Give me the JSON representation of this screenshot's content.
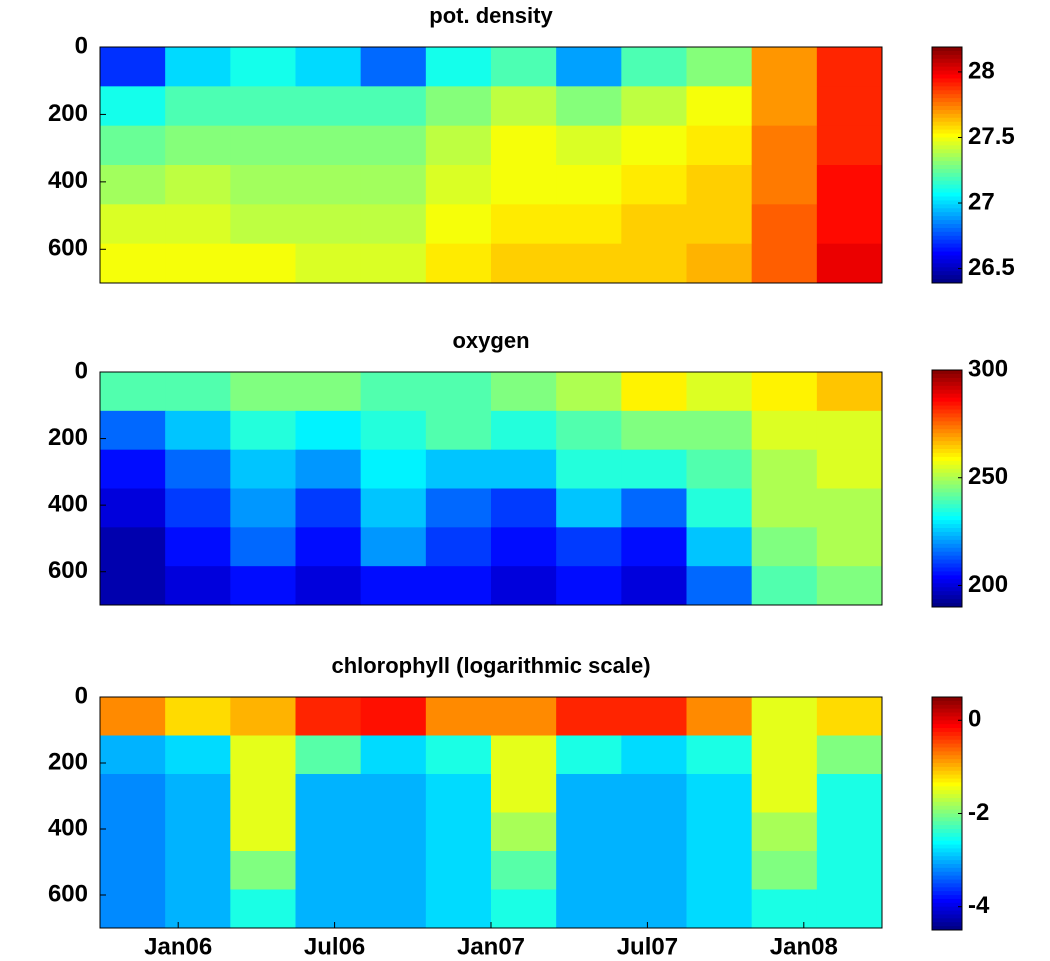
{
  "chart_data": [
    {
      "type": "contour",
      "title": "pot. density",
      "ylim": [
        0,
        700
      ],
      "yticks": [
        0,
        200,
        400,
        600
      ],
      "clim": [
        26.39,
        28.19
      ],
      "cticks": [
        26.5,
        27,
        27.5,
        28
      ],
      "z": [
        [
          26.7,
          27.0,
          27.1,
          27.0,
          26.8,
          27.1,
          27.2,
          26.9,
          27.2,
          27.3,
          27.7,
          27.9
        ],
        [
          27.1,
          27.2,
          27.2,
          27.2,
          27.2,
          27.3,
          27.4,
          27.3,
          27.4,
          27.5,
          27.7,
          27.9
        ],
        [
          27.25,
          27.3,
          27.3,
          27.3,
          27.3,
          27.4,
          27.5,
          27.45,
          27.5,
          27.55,
          27.75,
          27.9
        ],
        [
          27.35,
          27.4,
          27.35,
          27.35,
          27.35,
          27.45,
          27.5,
          27.5,
          27.55,
          27.6,
          27.75,
          27.95
        ],
        [
          27.45,
          27.45,
          27.4,
          27.4,
          27.4,
          27.5,
          27.55,
          27.55,
          27.6,
          27.6,
          27.8,
          27.95
        ],
        [
          27.5,
          27.5,
          27.5,
          27.45,
          27.45,
          27.55,
          27.6,
          27.6,
          27.6,
          27.65,
          27.8,
          28.0
        ]
      ]
    },
    {
      "type": "contour",
      "title": "oxygen",
      "ylim": [
        0,
        700
      ],
      "yticks": [
        0,
        200,
        400,
        600
      ],
      "clim": [
        190,
        300
      ],
      "cticks": [
        200,
        250,
        300
      ],
      "z": [
        [
          240,
          240,
          245,
          245,
          240,
          240,
          245,
          250,
          260,
          255,
          260,
          265
        ],
        [
          215,
          225,
          235,
          230,
          235,
          240,
          235,
          240,
          245,
          245,
          255,
          255
        ],
        [
          205,
          215,
          225,
          220,
          230,
          225,
          225,
          235,
          235,
          240,
          250,
          255
        ],
        [
          200,
          210,
          220,
          210,
          225,
          215,
          210,
          225,
          215,
          235,
          250,
          250
        ],
        [
          195,
          205,
          215,
          205,
          220,
          210,
          205,
          210,
          205,
          225,
          245,
          250
        ],
        [
          195,
          200,
          205,
          200,
          205,
          205,
          200,
          205,
          200,
          215,
          240,
          245
        ]
      ]
    },
    {
      "type": "contour",
      "title": "chlorophyll (logarithmic scale)",
      "ylim": [
        0,
        700
      ],
      "yticks": [
        0,
        200,
        400,
        600
      ],
      "clim": [
        -4.5,
        0.5
      ],
      "cticks": [
        -4,
        -2,
        0
      ],
      "xlim": [
        "2005-10",
        "2008-04"
      ],
      "xticks": [
        {
          "value": "2006-01",
          "label": "Jan06"
        },
        {
          "value": "2006-07",
          "label": "Jul06"
        },
        {
          "value": "2007-01",
          "label": "Jan07"
        },
        {
          "value": "2007-07",
          "label": "Jul07"
        },
        {
          "value": "2008-01",
          "label": "Jan08"
        }
      ],
      "z": [
        [
          -0.8,
          -1.2,
          -1.0,
          -0.3,
          -0.2,
          -0.8,
          -0.8,
          -0.3,
          -0.3,
          -0.8,
          -1.5,
          -1.2
        ],
        [
          -3,
          -2.8,
          -1.5,
          -2.2,
          -2.8,
          -2.5,
          -1.5,
          -2.5,
          -2.8,
          -2.5,
          -1.5,
          -2.0
        ],
        [
          -3.2,
          -3.0,
          -1.5,
          -3.0,
          -3.0,
          -2.8,
          -1.5,
          -3.0,
          -3.0,
          -2.8,
          -1.5,
          -2.5
        ],
        [
          -3.2,
          -3.0,
          -1.5,
          -3.0,
          -3.0,
          -2.8,
          -1.8,
          -3.0,
          -3.0,
          -2.8,
          -1.8,
          -2.5
        ],
        [
          -3.2,
          -3.0,
          -2.0,
          -3.0,
          -3.0,
          -2.8,
          -2.2,
          -3.0,
          -3.0,
          -2.8,
          -2.0,
          -2.5
        ],
        [
          -3.2,
          -3.0,
          -2.5,
          -3.0,
          -3.0,
          -2.8,
          -2.5,
          -3.0,
          -3.0,
          -2.8,
          -2.5,
          -2.5
        ]
      ]
    }
  ]
}
